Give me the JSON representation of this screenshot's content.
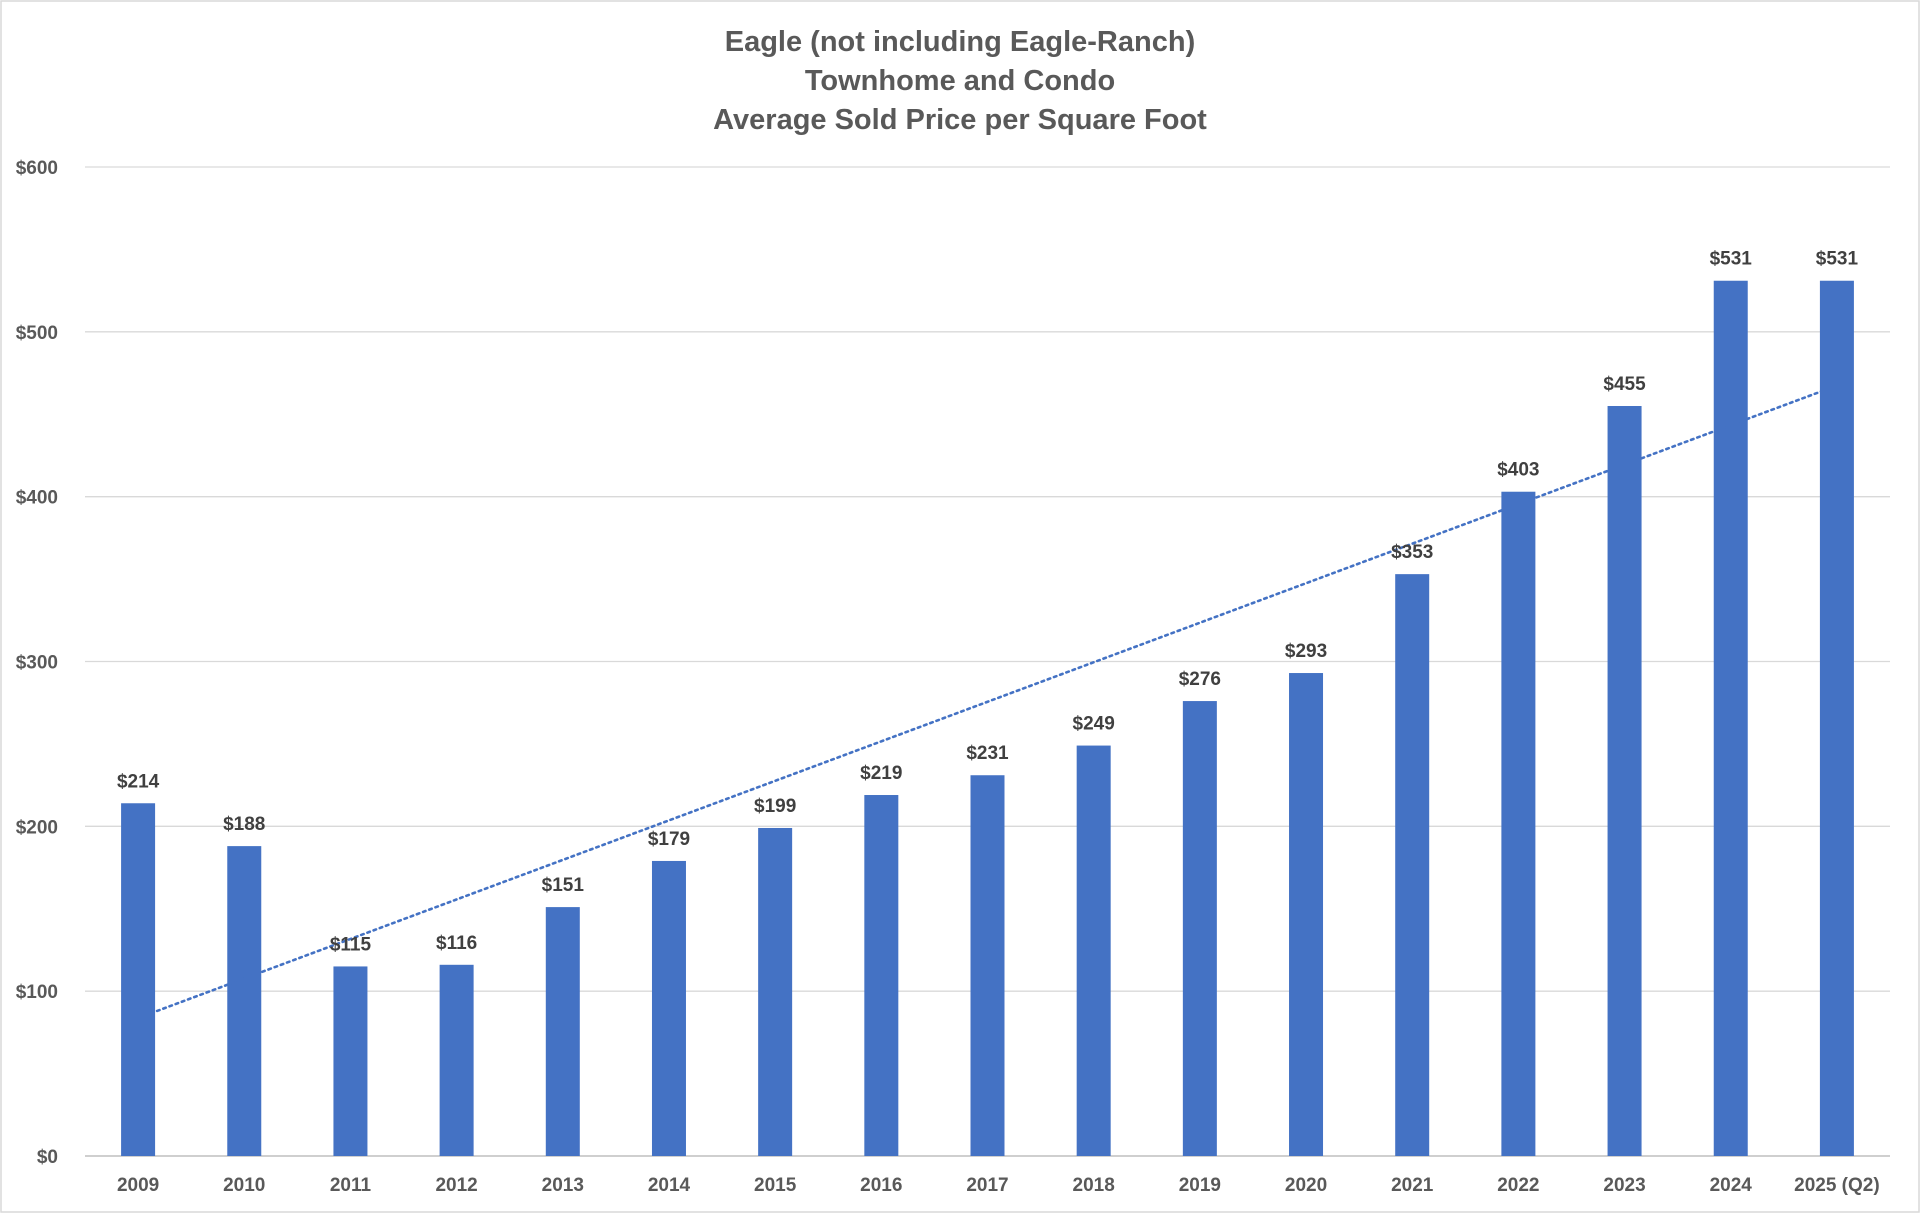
{
  "chart_data": {
    "type": "bar",
    "title": [
      "Eagle (not including Eagle-Ranch)",
      "Townhome and Condo",
      "Average Sold Price per Square Foot"
    ],
    "xlabel": "",
    "ylabel": "",
    "categories": [
      "2009",
      "2010",
      "2011",
      "2012",
      "2013",
      "2014",
      "2015",
      "2016",
      "2017",
      "2018",
      "2019",
      "2020",
      "2021",
      "2022",
      "2023",
      "2024",
      "2025 (Q2)"
    ],
    "values": [
      214,
      188,
      115,
      116,
      151,
      179,
      199,
      219,
      231,
      249,
      276,
      293,
      353,
      403,
      455,
      531,
      531
    ],
    "data_labels": [
      "$214",
      "$188",
      "$115",
      "$116",
      "$151",
      "$179",
      "$199",
      "$219",
      "$231",
      "$249",
      "$276",
      "$293",
      "$353",
      "$403",
      "$455",
      "$531",
      "$531"
    ],
    "ylim": [
      0,
      600
    ],
    "y_ticks": [
      0,
      100,
      200,
      300,
      400,
      500,
      600
    ],
    "y_tick_labels": [
      "$0",
      "$100",
      "$200",
      "$300",
      "$400",
      "$500",
      "$600"
    ],
    "grid": true,
    "legend": "none",
    "bar_color": "#4472C4",
    "trendline": {
      "type": "linear",
      "style": "dotted",
      "color": "#4472C4",
      "start_value": 88,
      "end_value": 464
    }
  }
}
